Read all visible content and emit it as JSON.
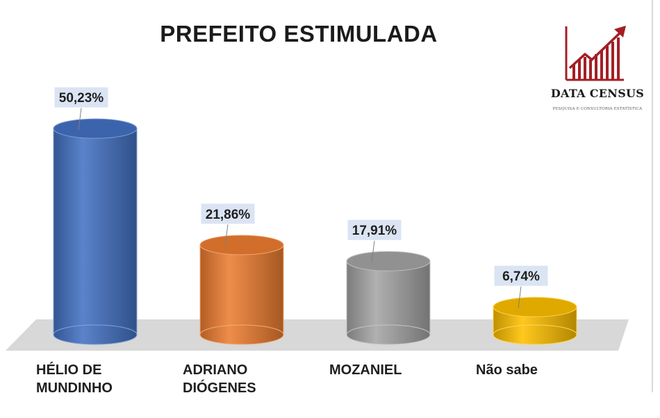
{
  "chart_data": {
    "type": "bar",
    "title": "PREFEITO ESTIMULADA",
    "categories": [
      "HÉLIO DE MUNDINHO",
      "ADRIANO DIÓGENES",
      "MOZANIEL",
      "Não sabe"
    ],
    "values": [
      50.23,
      21.86,
      17.91,
      6.74
    ],
    "data_labels": [
      "50,23%",
      "21,86%",
      "17,91%",
      "6,74%"
    ],
    "colors": [
      "#4472c4",
      "#ed7d31",
      "#a5a5a5",
      "#ffc000"
    ],
    "ylim": [
      0,
      55
    ],
    "grid": false,
    "legend": "none",
    "bar_shape": "cylinder"
  },
  "logo": {
    "name": "DATA CENSUS",
    "tagline": "PESQUISA E CONSULTORIA ESTATÍSTICA",
    "color": "#a31f24"
  }
}
